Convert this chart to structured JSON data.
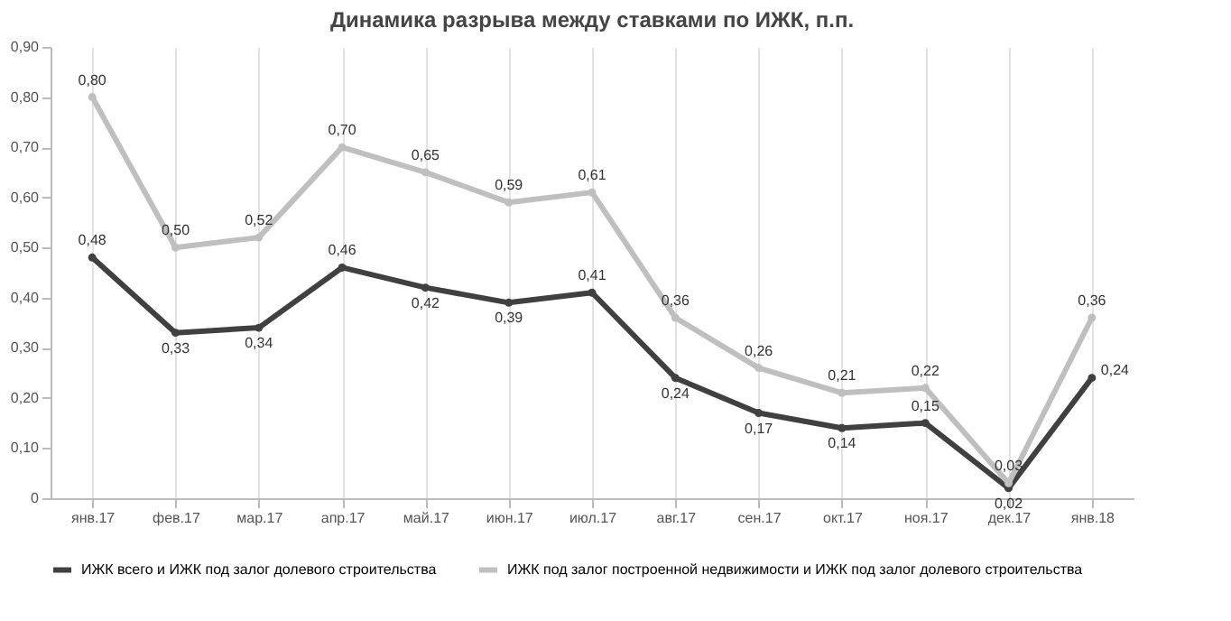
{
  "chart_data": {
    "type": "line",
    "title": "Динамика разрыва между ставками по ИЖК, п.п.",
    "categories": [
      "янв.17",
      "фев.17",
      "мар.17",
      "апр.17",
      "май.17",
      "июн.17",
      "июл.17",
      "авг.17",
      "сен.17",
      "окт.17",
      "ноя.17",
      "дек.17",
      "янв.18"
    ],
    "series": [
      {
        "name": "ИЖК всего  и  ИЖК под залог долевого  строительства",
        "color": "#404040",
        "values": [
          0.48,
          0.33,
          0.34,
          0.46,
          0.42,
          0.39,
          0.41,
          0.24,
          0.17,
          0.14,
          0.15,
          0.02,
          0.24
        ],
        "value_labels": [
          "0,48",
          "0,33",
          "0,34",
          "0,46",
          "0,42",
          "0,39",
          "0,41",
          "0,24",
          "0,17",
          "0,14",
          "0,15",
          "0,02",
          "0,24"
        ]
      },
      {
        "name": "ИЖК под залог построенной недвижимости  и  ИЖК под залог долевого  строительства",
        "color": "#bfbfbf",
        "values": [
          0.8,
          0.5,
          0.52,
          0.7,
          0.65,
          0.59,
          0.61,
          0.36,
          0.26,
          0.21,
          0.22,
          0.03,
          0.36
        ],
        "value_labels": [
          "0,80",
          "0,50",
          "0,52",
          "0,70",
          "0,65",
          "0,59",
          "0,61",
          "0,36",
          "0,26",
          "0,21",
          "0,22",
          "0,03",
          "0,36"
        ]
      }
    ],
    "ylim": [
      0,
      0.9
    ],
    "yticks": [
      0,
      {
        "value": 0.1,
        "label": "0,10"
      },
      {
        "value": 0.2,
        "label": "0,20"
      },
      {
        "value": 0.3,
        "label": "0,30"
      },
      {
        "value": 0.4,
        "label": "0,40"
      },
      {
        "value": 0.5,
        "label": "0,50"
      },
      {
        "value": 0.6,
        "label": "0,60"
      },
      {
        "value": 0.7,
        "label": "0,70"
      },
      {
        "value": 0.8,
        "label": "0,80"
      },
      {
        "value": 0.9,
        "label": "0,90"
      }
    ],
    "grid": "x",
    "legend": "bottom",
    "marker": "circle",
    "line_style": "solid"
  }
}
